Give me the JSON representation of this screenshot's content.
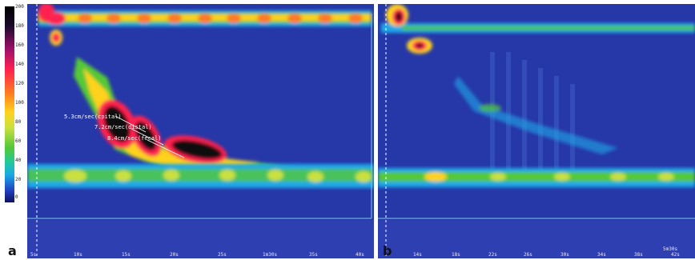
{
  "colorbar": {
    "ticks": [
      "200",
      "180",
      "160",
      "140",
      "120",
      "100",
      "80",
      "60",
      "40",
      "20",
      "0"
    ]
  },
  "panel_a": {
    "label": "a",
    "annotations": [
      "5.3cm/sec(cpital)",
      "7.2cm/sec(distal)",
      "8.4cm/sec(fecal)"
    ],
    "xticks": [
      "5s",
      "10s",
      "15s",
      "20s",
      "25s",
      "1m30s",
      "35s",
      "40s"
    ]
  },
  "panel_b": {
    "label": "b",
    "xticks": [
      "14s",
      "18s",
      "22s",
      "26s",
      "30s",
      "34s",
      "38s",
      "42s",
      "5m30s"
    ]
  }
}
